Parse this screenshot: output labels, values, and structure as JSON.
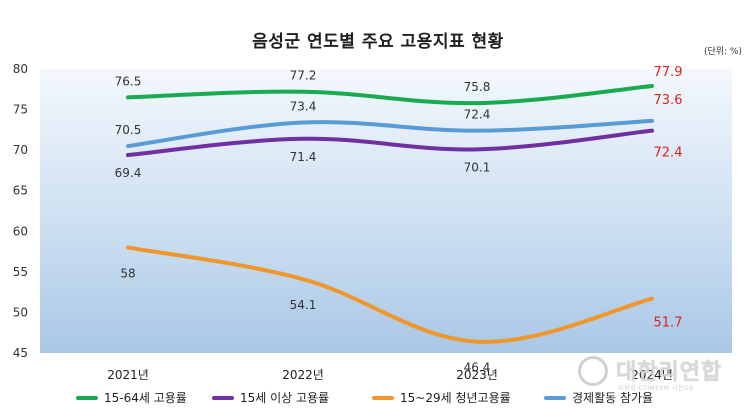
{
  "title": "음성군 연도별 주요 고용지표 현황",
  "unit_label": "(단위: %)",
  "colors": {
    "employment_15_64": "#1aaa4f",
    "employment_15_over": "#7030a0",
    "youth_employment": "#f0962a",
    "participation": "#5b9bd5",
    "highlight_label": "#e0201e"
  },
  "watermark": {
    "text": "대한리연합",
    "sub": "위원회 CTIMESM 사진DB"
  },
  "chart_data": {
    "type": "line",
    "title": "음성군 연도별 주요 고용지표 현황",
    "unit": "(단위: %)",
    "categories": [
      "2021년",
      "2022년",
      "2023년",
      "2024년"
    ],
    "ylim": [
      45,
      80
    ],
    "yticks": [
      45,
      50,
      55,
      60,
      65,
      70,
      75,
      80
    ],
    "grid": false,
    "legend_position": "bottom",
    "series": [
      {
        "name": "15-64세 고용률",
        "values": [
          76.5,
          77.2,
          75.8,
          77.9
        ]
      },
      {
        "name": "15세 이상 고용률",
        "values": [
          69.4,
          71.4,
          70.1,
          72.4
        ]
      },
      {
        "name": "15~29세 청년고용률",
        "values": [
          58,
          54.1,
          46.4,
          51.7
        ]
      },
      {
        "name": "경제활동 참가율",
        "values": [
          70.5,
          73.4,
          72.4,
          73.6
        ]
      }
    ]
  }
}
